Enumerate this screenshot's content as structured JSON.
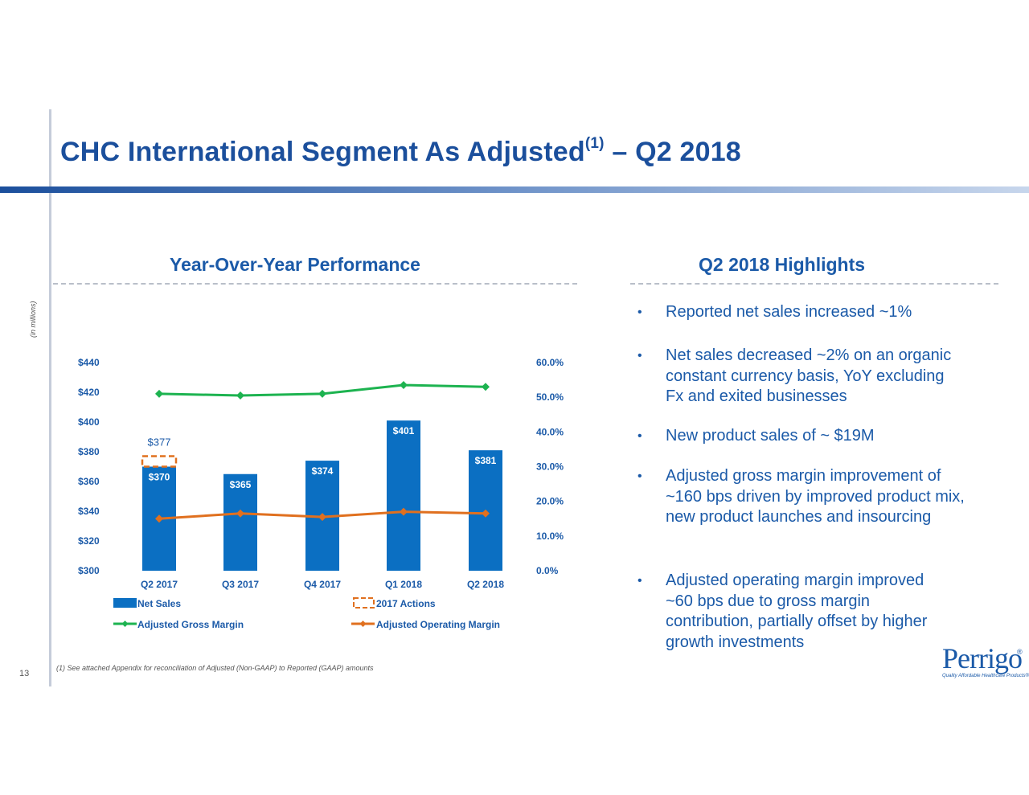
{
  "slide": {
    "title": "CHC International Segment As Adjusted",
    "title_sup": "(1)",
    "title_suffix": " – Q2 2018",
    "page_number": "13",
    "footnote": "(1)   See attached Appendix for reconciliation of Adjusted (Non-GAAP) to Reported (GAAP) amounts"
  },
  "left": {
    "heading": "Year-Over-Year Performance",
    "units_note": "(in millions)"
  },
  "right": {
    "heading": "Q2 2018 Highlights",
    "bullets": [
      "Reported net sales increased ~1%",
      "Net sales decreased ~2% on an organic constant currency basis, YoY excluding Fx and exited businesses",
      "New product sales of ~ $19M",
      "Adjusted gross margin improvement of ~160 bps driven by improved product mix, new product launches and insourcing",
      "Adjusted operating margin improved ~60 bps due to gross margin contribution, partially offset by higher growth investments"
    ]
  },
  "logo": {
    "name": "Perrigo",
    "tagline": "Quality Affordable Healthcare Products®"
  },
  "colors": {
    "title": "#1b4f9c",
    "text": "#1b5aa8",
    "bar": "#0b6fc2",
    "gross_margin": "#1db350",
    "operating_margin": "#e0701f",
    "actions": "#e0701f"
  },
  "chart_data": {
    "type": "bar",
    "categories": [
      "Q2 2017",
      "Q3 2017",
      "Q4 2017",
      "Q1 2018",
      "Q2 2018"
    ],
    "series": [
      {
        "name": "Net Sales",
        "type": "bar",
        "axis": "left",
        "values": [
          370,
          365,
          374,
          401,
          381
        ],
        "labels": [
          "$370",
          "$365",
          "$374",
          "$401",
          "$381"
        ]
      },
      {
        "name": "2017 Actions",
        "type": "bar-outline",
        "axis": "left",
        "values": [
          377,
          null,
          null,
          null,
          null
        ],
        "labels": [
          "$377",
          "",
          "",
          "",
          ""
        ]
      },
      {
        "name": "Adjusted Gross Margin",
        "type": "line",
        "axis": "right",
        "values": [
          51.0,
          50.5,
          51.0,
          53.5,
          53.0
        ]
      },
      {
        "name": "Adjusted Operating Margin",
        "type": "line",
        "axis": "right",
        "values": [
          15.0,
          16.5,
          15.5,
          17.0,
          16.5
        ]
      }
    ],
    "y_left": {
      "range": [
        300,
        440
      ],
      "ticks": [
        "$300",
        "$320",
        "$340",
        "$360",
        "$380",
        "$400",
        "$420",
        "$440"
      ]
    },
    "y_right": {
      "range": [
        0,
        60
      ],
      "ticks": [
        "0.0%",
        "10.0%",
        "20.0%",
        "30.0%",
        "40.0%",
        "50.0%",
        "60.0%"
      ]
    },
    "legend_position": "bottom",
    "grid": false
  }
}
